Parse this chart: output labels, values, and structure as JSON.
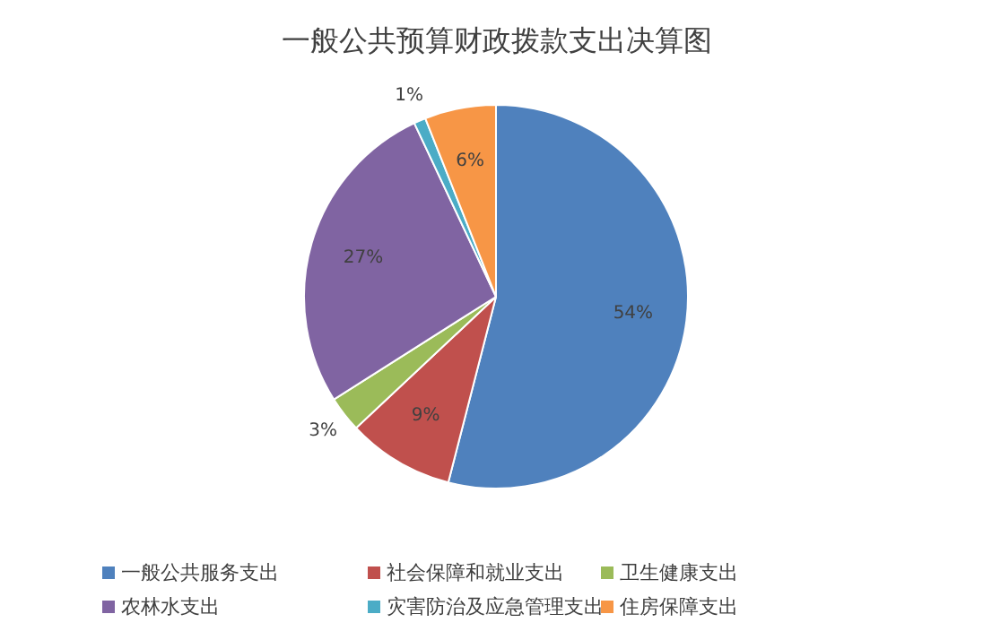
{
  "chart_data": {
    "type": "pie",
    "title": "一般公共预算财政拨款支出决算图",
    "categories": [
      "一般公共服务支出",
      "社会保障和就业支出",
      "卫生健康支出",
      "农林水支出",
      "灾害防治及应急管理支出",
      "住房保障支出"
    ],
    "values": [
      54,
      9,
      3,
      27,
      1,
      6
    ],
    "colors": [
      "#4f81bd",
      "#c0504d",
      "#9bbb59",
      "#8064a2",
      "#4bacc6",
      "#f79646"
    ],
    "value_labels": [
      "54%",
      "9%",
      "3%",
      "27%",
      "1%",
      "6%"
    ],
    "legend": "bottom"
  }
}
